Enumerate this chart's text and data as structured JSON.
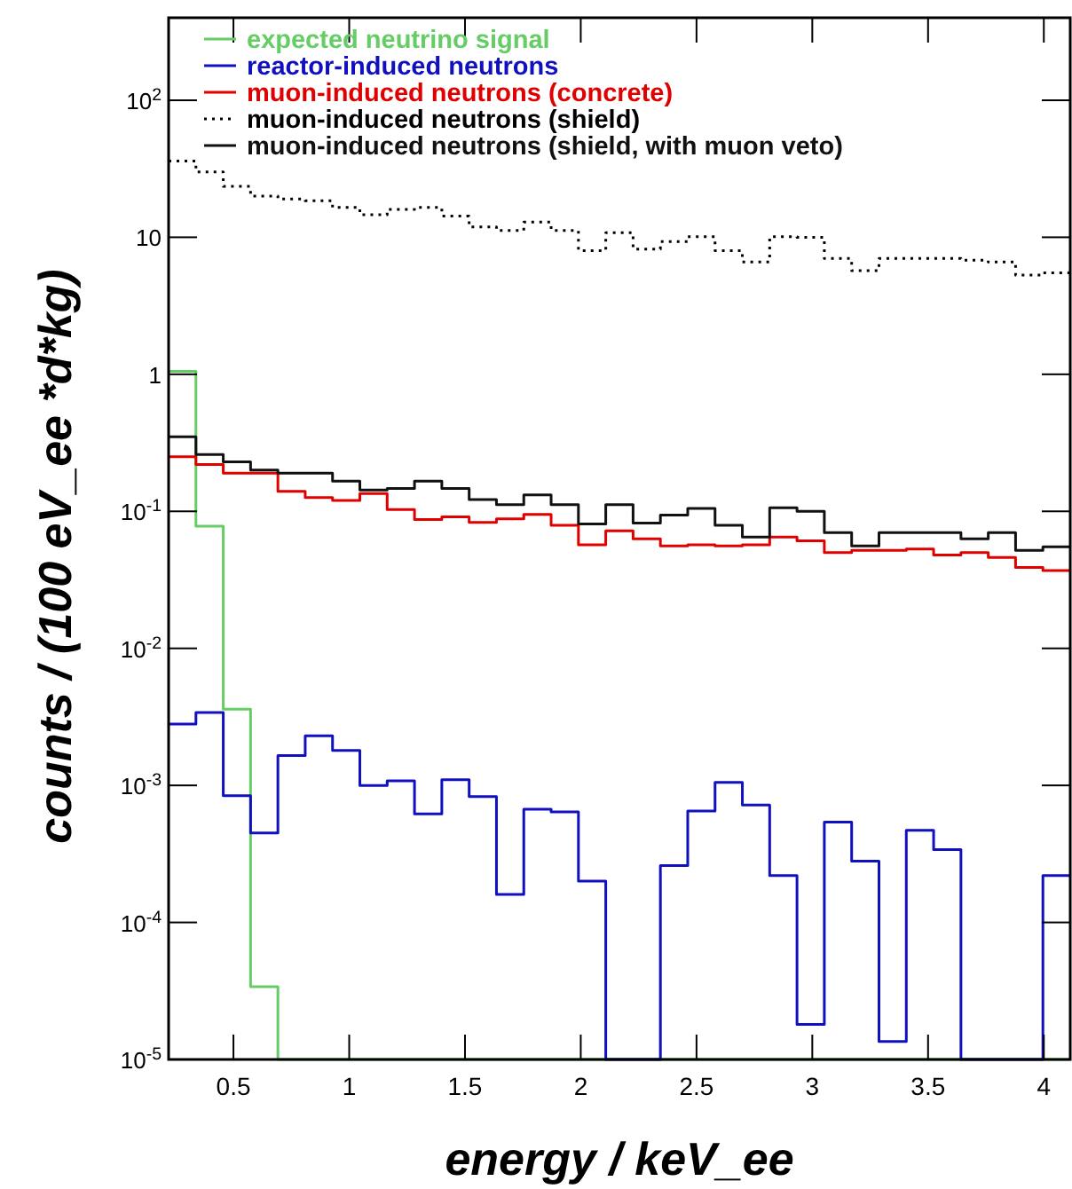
{
  "chart_data": {
    "type": "histogram",
    "xlabel": "energy / keV_ee",
    "ylabel": "counts / (100 eV_ee *d*kg)",
    "log": "y",
    "grid": false,
    "legend": "top left",
    "xlim": [
      0.22,
      4.114
    ],
    "xticks": [
      0.5,
      1,
      1.5,
      2,
      2.5,
      3,
      3.5,
      4
    ],
    "ylim": [
      1e-05,
      400
    ],
    "yticks": [
      {
        "value": 1e-05,
        "label": "10$^{-5}$"
      },
      {
        "value": 0.0001,
        "label": "10$^{-4}$"
      },
      {
        "value": 0.001,
        "label": "10$^{-3}$"
      },
      {
        "value": 0.01,
        "label": "10$^{-2}$"
      },
      {
        "value": 0.1,
        "label": "10$^{-1}$"
      },
      1,
      10,
      {
        "value": 100,
        "label": "10$^{2}$"
      }
    ],
    "bins": [
      0.22,
      0.338,
      0.456,
      0.574,
      0.692,
      0.81,
      0.928,
      1.046,
      1.164,
      1.282,
      1.4,
      1.518,
      1.636,
      1.754,
      1.872,
      1.99,
      2.108,
      2.226,
      2.344,
      2.462,
      2.58,
      2.698,
      2.816,
      2.934,
      3.052,
      3.17,
      3.288,
      3.406,
      3.524,
      3.642,
      3.76,
      3.878,
      3.996,
      4.114
    ],
    "series": [
      {
        "name": "expected neutrino signal",
        "color": "#66cc66",
        "values": [
          1.05,
          0.078,
          0.0036,
          3.4e-05,
          1e-05,
          1e-05,
          1e-05,
          1e-05,
          1e-05,
          1e-05,
          1e-05,
          1e-05,
          1e-05,
          1e-05,
          1e-05,
          1e-05,
          1e-05,
          1e-05,
          1e-05,
          1e-05,
          1e-05,
          1e-05,
          1e-05,
          1e-05,
          1e-05,
          1e-05,
          1e-05,
          1e-05,
          1e-05,
          1e-05,
          1e-05,
          1e-05,
          1e-05
        ]
      },
      {
        "name": "reactor-induced neutrons",
        "color": "#1010c0",
        "values": [
          0.0028,
          0.0034,
          0.00084,
          0.00045,
          0.00165,
          0.0023,
          0.0018,
          0.001,
          0.00108,
          0.00062,
          0.0011,
          0.00083,
          0.00016,
          0.00067,
          0.00064,
          0.0002,
          1e-05,
          1e-05,
          0.00026,
          0.00065,
          0.00105,
          0.00072,
          0.00022,
          1.8e-05,
          0.00054,
          0.00028,
          1.35e-05,
          0.00047,
          0.00034,
          1e-05,
          1e-05,
          1e-05,
          0.00022
        ]
      },
      {
        "name": "muon-induced neutrons (concrete)",
        "color": "#e00000",
        "values": [
          0.25,
          0.22,
          0.19,
          0.19,
          0.14,
          0.126,
          0.12,
          0.135,
          0.103,
          0.087,
          0.091,
          0.083,
          0.088,
          0.095,
          0.079,
          0.057,
          0.072,
          0.063,
          0.056,
          0.057,
          0.056,
          0.057,
          0.065,
          0.061,
          0.05,
          0.052,
          0.052,
          0.053,
          0.048,
          0.05,
          0.046,
          0.039,
          0.037
        ]
      },
      {
        "name": "muon-induced neutrons (shield)",
        "color": "#000000",
        "line_style": "dotted",
        "values": [
          36,
          30,
          23.5,
          20,
          19,
          18.5,
          16.5,
          14.6,
          16,
          16.5,
          14.3,
          11.9,
          11.2,
          12.9,
          11.2,
          8,
          10.8,
          8.2,
          9.3,
          10.1,
          8,
          6.6,
          10.1,
          10,
          7,
          5.7,
          7,
          7,
          7,
          6.8,
          6.6,
          5.3,
          5.5
        ]
      },
      {
        "name": "muon-induced neutrons (shield, with muon veto)",
        "color": "#111111",
        "line_style": "solid",
        "values": [
          0.35,
          0.26,
          0.23,
          0.2,
          0.19,
          0.19,
          0.166,
          0.143,
          0.147,
          0.166,
          0.147,
          0.122,
          0.112,
          0.132,
          0.112,
          0.081,
          0.112,
          0.082,
          0.094,
          0.105,
          0.079,
          0.065,
          0.106,
          0.1,
          0.07,
          0.056,
          0.07,
          0.07,
          0.07,
          0.063,
          0.07,
          0.052,
          0.055
        ]
      }
    ]
  }
}
